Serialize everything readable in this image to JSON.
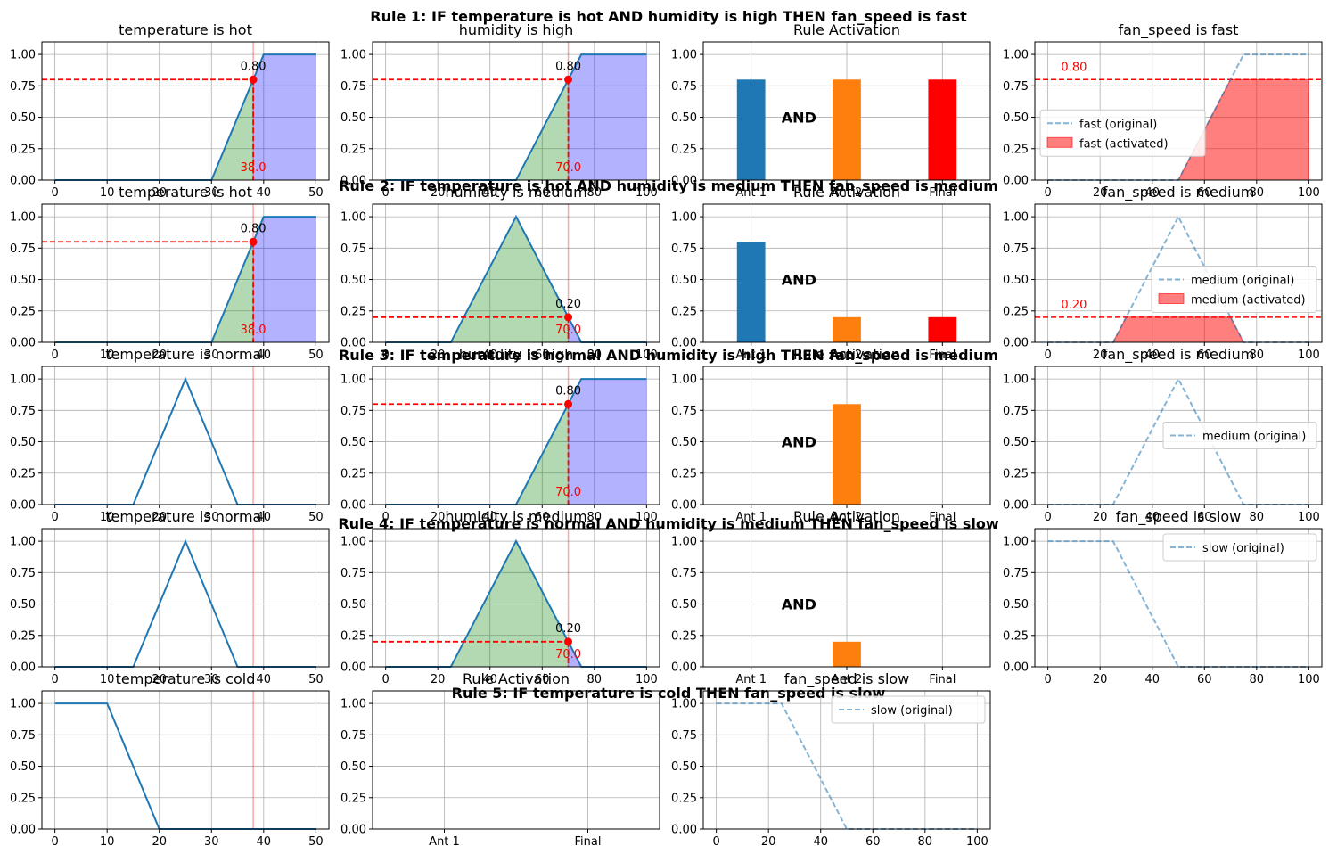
{
  "figure": {
    "rule_titles": [
      "Rule 1: IF temperature is hot AND humidity is high THEN fan_speed is fast",
      "Rule 2: IF temperature is hot AND humidity is medium THEN fan_speed is medium",
      "Rule 3: IF temperature is normal AND humidity is high THEN fan_speed is medium",
      "Rule 4: IF temperature is normal AND humidity is medium THEN fan_speed is slow",
      "Rule 5: IF temperature is cold THEN fan_speed is slow"
    ]
  },
  "chart_data": [
    {
      "rule": 1,
      "panel": "antecedent",
      "type": "line",
      "title": "temperature is hot",
      "xlim": [
        0,
        50
      ],
      "ylim": [
        0,
        1.1
      ],
      "xticks": [
        0,
        10,
        20,
        30,
        40,
        50
      ],
      "yticks": [
        "0.00",
        "0.25",
        "0.50",
        "0.75",
        "1.00"
      ],
      "x": [
        0,
        30,
        40,
        50
      ],
      "y": [
        0,
        0,
        1,
        1
      ],
      "input": 38,
      "input_label": "38.0",
      "membership": 0.8,
      "membership_label": "0.80",
      "color": "#1f77b4"
    },
    {
      "rule": 1,
      "panel": "antecedent",
      "type": "line",
      "title": "humidity is high",
      "xlim": [
        0,
        100
      ],
      "ylim": [
        0,
        1.1
      ],
      "xticks": [
        0,
        20,
        40,
        60,
        80,
        100
      ],
      "yticks": [
        "0.00",
        "0.25",
        "0.50",
        "0.75",
        "1.00"
      ],
      "x": [
        0,
        50,
        75,
        100
      ],
      "y": [
        0,
        0,
        1,
        1
      ],
      "input": 70,
      "input_label": "70.0",
      "membership": 0.8,
      "membership_label": "0.80",
      "color": "#1f77b4"
    },
    {
      "rule": 1,
      "panel": "activation",
      "type": "bar",
      "title": "Rule Activation",
      "categories": [
        "Ant 1",
        "Ant 2",
        "Final"
      ],
      "values": [
        0.8,
        0.8,
        0.8
      ],
      "colors": [
        "#1f77b4",
        "#ff7f0e",
        "#ff0000"
      ],
      "ylim": [
        0,
        1.1
      ],
      "yticks": [
        "0.00",
        "0.25",
        "0.50",
        "0.75",
        "1.00"
      ],
      "operator": "AND"
    },
    {
      "rule": 1,
      "panel": "consequent",
      "type": "area",
      "title": "fan_speed is fast",
      "xlim": [
        0,
        100
      ],
      "ylim": [
        0,
        1.1
      ],
      "xticks": [
        0,
        20,
        40,
        60,
        80,
        100
      ],
      "yticks": [
        "0.00",
        "0.25",
        "0.50",
        "0.75",
        "1.00"
      ],
      "x": [
        0,
        50,
        75,
        100
      ],
      "y": [
        0,
        0,
        1,
        1
      ],
      "activation": 0.8,
      "activation_label": "0.80",
      "legend": [
        "fast (original)",
        "fast (activated)"
      ],
      "legend_loc": "center-left"
    },
    {
      "rule": 2,
      "panel": "antecedent",
      "type": "line",
      "title": "temperature is hot",
      "xlim": [
        0,
        50
      ],
      "ylim": [
        0,
        1.1
      ],
      "xticks": [
        0,
        10,
        20,
        30,
        40,
        50
      ],
      "yticks": [
        "0.00",
        "0.25",
        "0.50",
        "0.75",
        "1.00"
      ],
      "x": [
        0,
        30,
        40,
        50
      ],
      "y": [
        0,
        0,
        1,
        1
      ],
      "input": 38,
      "input_label": "38.0",
      "membership": 0.8,
      "membership_label": "0.80",
      "color": "#1f77b4"
    },
    {
      "rule": 2,
      "panel": "antecedent",
      "type": "line",
      "title": "humidity is medium",
      "xlim": [
        0,
        100
      ],
      "ylim": [
        0,
        1.1
      ],
      "xticks": [
        0,
        20,
        40,
        60,
        80,
        100
      ],
      "yticks": [
        "0.00",
        "0.25",
        "0.50",
        "0.75",
        "1.00"
      ],
      "x": [
        0,
        25,
        50,
        75,
        100
      ],
      "y": [
        0,
        0,
        1,
        0,
        0
      ],
      "input": 70,
      "input_label": "70.0",
      "membership": 0.2,
      "membership_label": "0.20",
      "color": "#1f77b4"
    },
    {
      "rule": 2,
      "panel": "activation",
      "type": "bar",
      "title": "Rule Activation",
      "categories": [
        "Ant 1",
        "Ant 2",
        "Final"
      ],
      "values": [
        0.8,
        0.2,
        0.2
      ],
      "colors": [
        "#1f77b4",
        "#ff7f0e",
        "#ff0000"
      ],
      "ylim": [
        0,
        1.1
      ],
      "yticks": [
        "0.00",
        "0.25",
        "0.50",
        "0.75",
        "1.00"
      ],
      "operator": "AND"
    },
    {
      "rule": 2,
      "panel": "consequent",
      "type": "area",
      "title": "fan_speed is medium",
      "xlim": [
        0,
        100
      ],
      "ylim": [
        0,
        1.1
      ],
      "xticks": [
        0,
        20,
        40,
        60,
        80,
        100
      ],
      "yticks": [
        "0.00",
        "0.25",
        "0.50",
        "0.75",
        "1.00"
      ],
      "x": [
        0,
        25,
        50,
        75,
        100
      ],
      "y": [
        0,
        0,
        1,
        0,
        0
      ],
      "activation": 0.2,
      "activation_label": "0.20",
      "legend": [
        "medium (original)",
        "medium (activated)"
      ],
      "legend_loc": "center-right"
    },
    {
      "rule": 3,
      "panel": "antecedent",
      "type": "line",
      "title": "temperature is normal",
      "xlim": [
        0,
        50
      ],
      "ylim": [
        0,
        1.1
      ],
      "xticks": [
        0,
        10,
        20,
        30,
        40,
        50
      ],
      "yticks": [
        "0.00",
        "0.25",
        "0.50",
        "0.75",
        "1.00"
      ],
      "x": [
        0,
        15,
        25,
        35,
        50
      ],
      "y": [
        0,
        0,
        1,
        0,
        0
      ],
      "input": 38,
      "membership": 0,
      "color": "#1f77b4"
    },
    {
      "rule": 3,
      "panel": "antecedent",
      "type": "line",
      "title": "humidity is high",
      "xlim": [
        0,
        100
      ],
      "ylim": [
        0,
        1.1
      ],
      "xticks": [
        0,
        20,
        40,
        60,
        80,
        100
      ],
      "yticks": [
        "0.00",
        "0.25",
        "0.50",
        "0.75",
        "1.00"
      ],
      "x": [
        0,
        50,
        75,
        100
      ],
      "y": [
        0,
        0,
        1,
        1
      ],
      "input": 70,
      "input_label": "70.0",
      "membership": 0.8,
      "membership_label": "0.80",
      "color": "#1f77b4"
    },
    {
      "rule": 3,
      "panel": "activation",
      "type": "bar",
      "title": "Rule Activation",
      "categories": [
        "Ant 1",
        "Ant 2",
        "Final"
      ],
      "values": [
        0,
        0.8,
        0
      ],
      "colors": [
        "#1f77b4",
        "#ff7f0e",
        "#ff0000"
      ],
      "ylim": [
        0,
        1.1
      ],
      "yticks": [
        "0.00",
        "0.25",
        "0.50",
        "0.75",
        "1.00"
      ],
      "operator": "AND"
    },
    {
      "rule": 3,
      "panel": "consequent",
      "type": "line",
      "title": "fan_speed is medium",
      "xlim": [
        0,
        100
      ],
      "ylim": [
        0,
        1.1
      ],
      "xticks": [
        0,
        20,
        40,
        60,
        80,
        100
      ],
      "yticks": [
        "0.00",
        "0.25",
        "0.50",
        "0.75",
        "1.00"
      ],
      "x": [
        0,
        25,
        50,
        75,
        100
      ],
      "y": [
        0,
        0,
        1,
        0,
        0
      ],
      "activation": 0,
      "legend": [
        "medium (original)"
      ],
      "legend_loc": "center-right"
    },
    {
      "rule": 4,
      "panel": "antecedent",
      "type": "line",
      "title": "temperature is normal",
      "xlim": [
        0,
        50
      ],
      "ylim": [
        0,
        1.1
      ],
      "xticks": [
        0,
        10,
        20,
        30,
        40,
        50
      ],
      "yticks": [
        "0.00",
        "0.25",
        "0.50",
        "0.75",
        "1.00"
      ],
      "x": [
        0,
        15,
        25,
        35,
        50
      ],
      "y": [
        0,
        0,
        1,
        0,
        0
      ],
      "input": 38,
      "membership": 0,
      "color": "#1f77b4"
    },
    {
      "rule": 4,
      "panel": "antecedent",
      "type": "line",
      "title": "humidity is medium",
      "xlim": [
        0,
        100
      ],
      "ylim": [
        0,
        1.1
      ],
      "xticks": [
        0,
        20,
        40,
        60,
        80,
        100
      ],
      "yticks": [
        "0.00",
        "0.25",
        "0.50",
        "0.75",
        "1.00"
      ],
      "x": [
        0,
        25,
        50,
        75,
        100
      ],
      "y": [
        0,
        0,
        1,
        0,
        0
      ],
      "input": 70,
      "input_label": "70.0",
      "membership": 0.2,
      "membership_label": "0.20",
      "color": "#1f77b4"
    },
    {
      "rule": 4,
      "panel": "activation",
      "type": "bar",
      "title": "Rule Activation",
      "categories": [
        "Ant 1",
        "Ant 2",
        "Final"
      ],
      "values": [
        0,
        0.2,
        0
      ],
      "colors": [
        "#1f77b4",
        "#ff7f0e",
        "#ff0000"
      ],
      "ylim": [
        0,
        1.1
      ],
      "yticks": [
        "0.00",
        "0.25",
        "0.50",
        "0.75",
        "1.00"
      ],
      "operator": "AND"
    },
    {
      "rule": 4,
      "panel": "consequent",
      "type": "line",
      "title": "fan_speed is slow",
      "xlim": [
        0,
        100
      ],
      "ylim": [
        0,
        1.1
      ],
      "xticks": [
        0,
        20,
        40,
        60,
        80,
        100
      ],
      "yticks": [
        "0.00",
        "0.25",
        "0.50",
        "0.75",
        "1.00"
      ],
      "x": [
        0,
        25,
        50,
        100
      ],
      "y": [
        1,
        1,
        0,
        0
      ],
      "activation": 0,
      "legend": [
        "slow (original)"
      ],
      "legend_loc": "upper-right"
    },
    {
      "rule": 5,
      "panel": "antecedent",
      "type": "line",
      "title": "temperature is cold",
      "xlim": [
        0,
        50
      ],
      "ylim": [
        0,
        1.1
      ],
      "xticks": [
        0,
        10,
        20,
        30,
        40,
        50
      ],
      "yticks": [
        "0.00",
        "0.25",
        "0.50",
        "0.75",
        "1.00"
      ],
      "x": [
        0,
        10,
        20,
        50
      ],
      "y": [
        1,
        1,
        0,
        0
      ],
      "input": 38,
      "membership": 0,
      "color": "#1f77b4"
    },
    {
      "rule": 5,
      "panel": "activation",
      "type": "bar",
      "title": "Rule Activation",
      "categories": [
        "Ant 1",
        "Final"
      ],
      "values": [
        0,
        0
      ],
      "colors": [
        "#1f77b4",
        "#ff0000"
      ],
      "ylim": [
        0,
        1.1
      ],
      "yticks": [
        "0.00",
        "0.25",
        "0.50",
        "0.75",
        "1.00"
      ]
    },
    {
      "rule": 5,
      "panel": "consequent",
      "type": "line",
      "title": "fan_speed is slow",
      "xlim": [
        0,
        100
      ],
      "ylim": [
        0,
        1.1
      ],
      "xticks": [
        0,
        20,
        40,
        60,
        80,
        100
      ],
      "yticks": [
        "0.00",
        "0.25",
        "0.50",
        "0.75",
        "1.00"
      ],
      "x": [
        0,
        25,
        50,
        100
      ],
      "y": [
        1,
        1,
        0,
        0
      ],
      "activation": 0,
      "legend": [
        "slow (original)"
      ],
      "legend_loc": "upper-right"
    }
  ]
}
